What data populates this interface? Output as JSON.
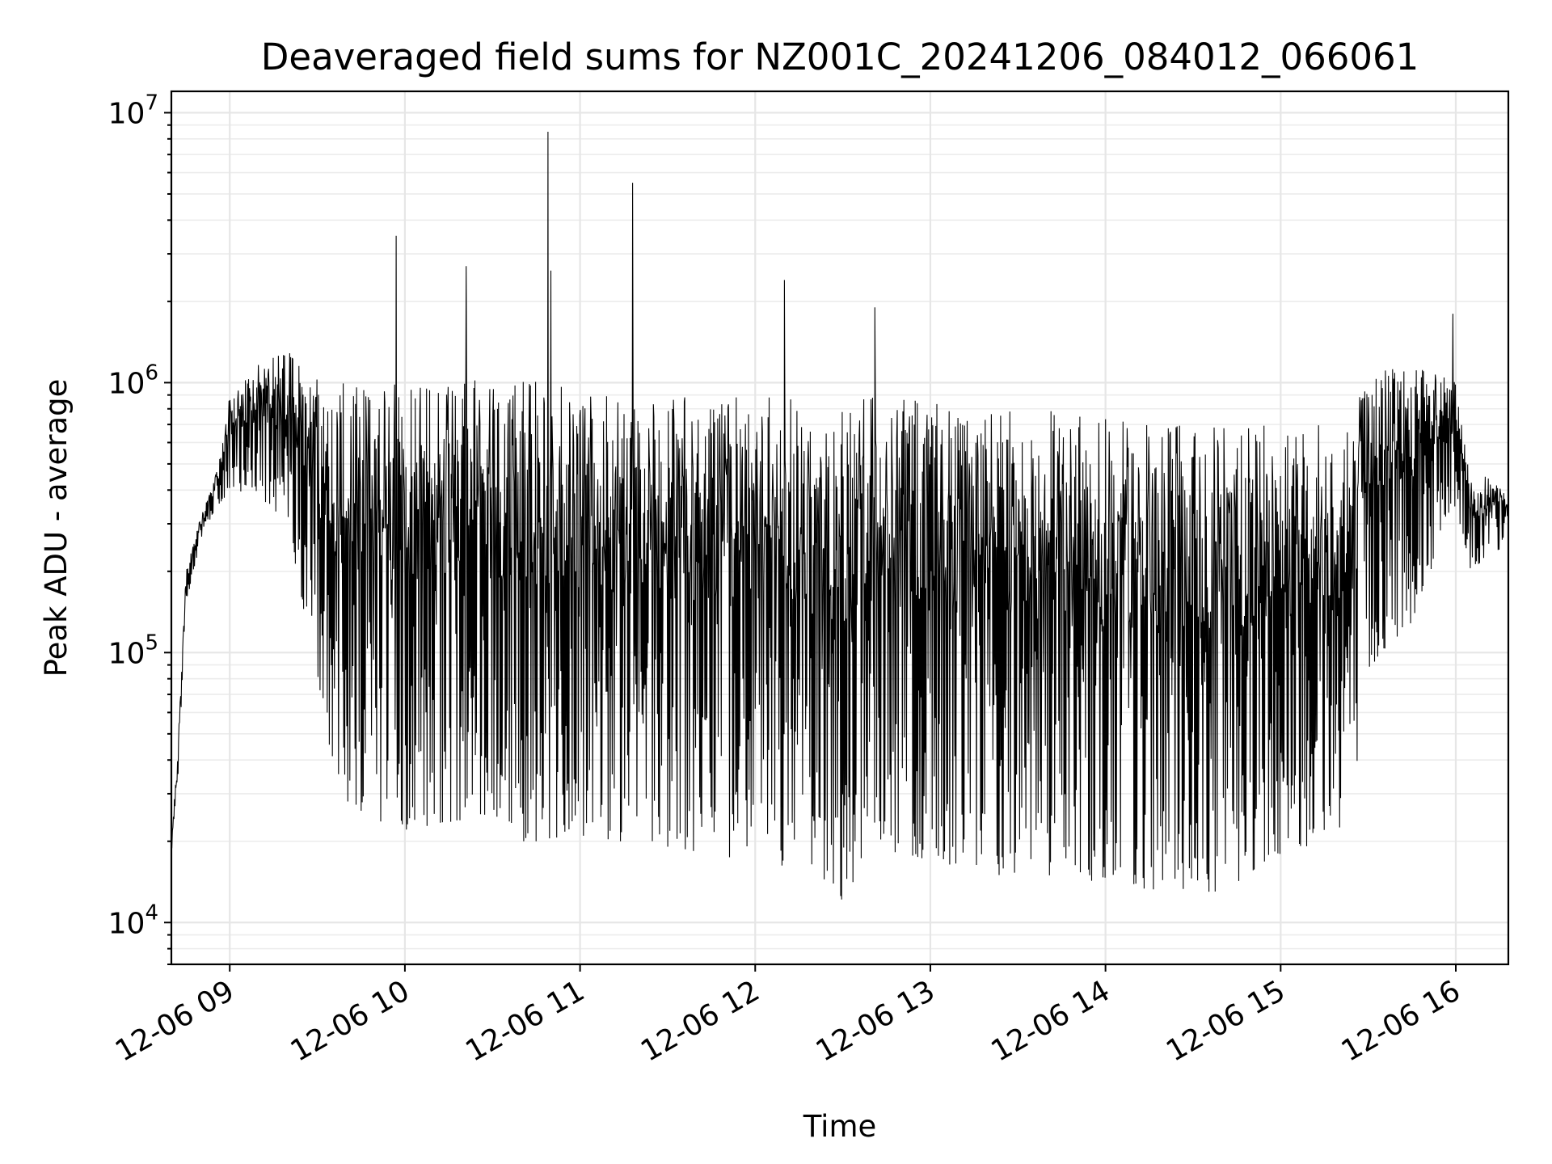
{
  "chart_data": {
    "type": "line",
    "title": "Deaveraged field sums for NZ001C_20241206_084012_066061",
    "xlabel": "Time",
    "ylabel": "Peak ADU - average",
    "yscale": "log",
    "ylim": [
      7000,
      12000000
    ],
    "xlim": [
      "2024-12-06 08:40",
      "2024-12-06 16:18"
    ],
    "grid": true,
    "line_color": "#000000",
    "x_ticks": [
      {
        "x": "2024-12-06 09:00",
        "label": "12-06 09"
      },
      {
        "x": "2024-12-06 10:00",
        "label": "12-06 10"
      },
      {
        "x": "2024-12-06 11:00",
        "label": "12-06 11"
      },
      {
        "x": "2024-12-06 12:00",
        "label": "12-06 12"
      },
      {
        "x": "2024-12-06 13:00",
        "label": "12-06 13"
      },
      {
        "x": "2024-12-06 14:00",
        "label": "12-06 14"
      },
      {
        "x": "2024-12-06 15:00",
        "label": "12-06 15"
      },
      {
        "x": "2024-12-06 16:00",
        "label": "12-06 16"
      }
    ],
    "y_ticks": [
      {
        "value": 10000,
        "base": "10",
        "exp": "4"
      },
      {
        "value": 100000,
        "base": "10",
        "exp": "5"
      },
      {
        "value": 1000000,
        "base": "10",
        "exp": "6"
      },
      {
        "value": 10000000,
        "base": "10",
        "exp": "7"
      }
    ],
    "series": [
      {
        "lower_envelope": {
          "x": [
            "2024-12-06 08:40",
            "2024-12-06 08:42",
            "2024-12-06 08:45",
            "2024-12-06 08:50",
            "2024-12-06 08:55",
            "2024-12-06 09:00",
            "2024-12-06 09:10",
            "2024-12-06 09:20",
            "2024-12-06 09:25",
            "2024-12-06 09:30",
            "2024-12-06 09:35",
            "2024-12-06 09:40",
            "2024-12-06 09:50",
            "2024-12-06 10:00",
            "2024-12-06 10:20",
            "2024-12-06 10:40",
            "2024-12-06 11:00",
            "2024-12-06 11:20",
            "2024-12-06 11:40",
            "2024-12-06 12:00",
            "2024-12-06 12:20",
            "2024-12-06 12:30",
            "2024-12-06 12:40",
            "2024-12-06 13:00",
            "2024-12-06 13:20",
            "2024-12-06 13:40",
            "2024-12-06 14:00",
            "2024-12-06 14:20",
            "2024-12-06 14:40",
            "2024-12-06 15:00",
            "2024-12-06 15:15",
            "2024-12-06 15:25",
            "2024-12-06 15:28",
            "2024-12-06 15:35",
            "2024-12-06 15:45",
            "2024-12-06 16:00",
            "2024-12-06 16:05",
            "2024-12-06 16:10",
            "2024-12-06 16:18"
          ],
          "y": [
            18000,
            30000,
            150000,
            260000,
            340000,
            380000,
            380000,
            300000,
            150000,
            80000,
            40000,
            28000,
            24000,
            22000,
            24000,
            20000,
            20000,
            20000,
            18000,
            17000,
            15000,
            12000,
            19000,
            17000,
            15000,
            15000,
            14000,
            13000,
            13000,
            18000,
            20000,
            25000,
            70000,
            100000,
            130000,
            350000,
            200000,
            220000,
            250000
          ]
        },
        "upper_envelope": {
          "x": [
            "2024-12-06 08:40",
            "2024-12-06 08:42",
            "2024-12-06 08:45",
            "2024-12-06 08:50",
            "2024-12-06 08:55",
            "2024-12-06 09:00",
            "2024-12-06 09:10",
            "2024-12-06 09:20",
            "2024-12-06 09:25",
            "2024-12-06 09:30",
            "2024-12-06 09:35",
            "2024-12-06 09:40",
            "2024-12-06 09:50",
            "2024-12-06 10:00",
            "2024-12-06 10:20",
            "2024-12-06 10:40",
            "2024-12-06 11:00",
            "2024-12-06 11:20",
            "2024-12-06 11:40",
            "2024-12-06 12:00",
            "2024-12-06 12:20",
            "2024-12-06 12:30",
            "2024-12-06 12:40",
            "2024-12-06 13:00",
            "2024-12-06 13:20",
            "2024-12-06 13:40",
            "2024-12-06 14:00",
            "2024-12-06 14:20",
            "2024-12-06 14:40",
            "2024-12-06 15:00",
            "2024-12-06 15:15",
            "2024-12-06 15:25",
            "2024-12-06 15:28",
            "2024-12-06 15:35",
            "2024-12-06 15:45",
            "2024-12-06 16:00",
            "2024-12-06 16:05",
            "2024-12-06 16:10",
            "2024-12-06 16:18"
          ],
          "y": [
            20000,
            40000,
            200000,
            320000,
            450000,
            900000,
            1200000,
            1300000,
            1200000,
            1100000,
            1000000,
            1000000,
            1000000,
            1000000,
            1050000,
            1100000,
            1000000,
            950000,
            900000,
            900000,
            850000,
            800000,
            900000,
            850000,
            800000,
            800000,
            750000,
            700000,
            700000,
            700000,
            750000,
            750000,
            1100000,
            1200000,
            1200000,
            1000000,
            450000,
            450000,
            400000
          ]
        },
        "spikes": [
          {
            "x": "2024-12-06 09:57",
            "y": 3500000
          },
          {
            "x": "2024-12-06 10:21",
            "y": 2700000
          },
          {
            "x": "2024-12-06 10:49",
            "y": 8500000
          },
          {
            "x": "2024-12-06 10:50",
            "y": 2600000
          },
          {
            "x": "2024-12-06 11:18",
            "y": 5500000
          },
          {
            "x": "2024-12-06 12:10",
            "y": 2400000
          },
          {
            "x": "2024-12-06 12:41",
            "y": 1900000
          },
          {
            "x": "2024-12-06 15:59",
            "y": 1800000
          }
        ]
      }
    ]
  }
}
